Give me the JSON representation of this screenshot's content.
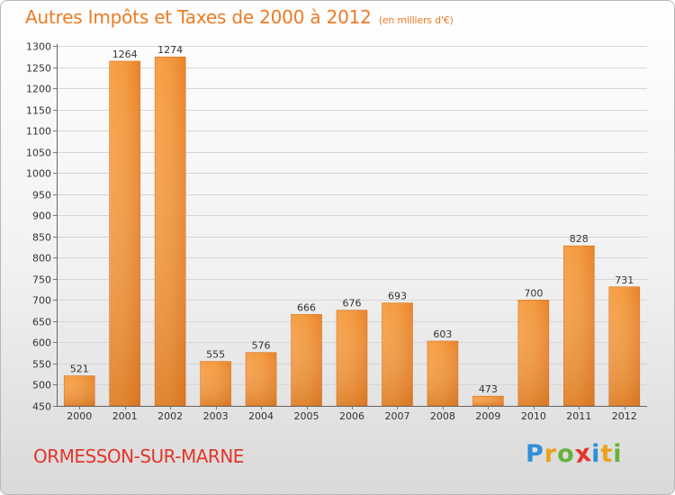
{
  "chart_data": {
    "type": "bar",
    "title": "Autres Impôts et Taxes de 2000 à 2012",
    "unit_note": "(en milliers d'€)",
    "categories": [
      "2000",
      "2001",
      "2002",
      "2003",
      "2004",
      "2005",
      "2006",
      "2007",
      "2008",
      "2009",
      "2010",
      "2011",
      "2012"
    ],
    "values": [
      521,
      1264,
      1274,
      555,
      576,
      666,
      676,
      693,
      603,
      473,
      700,
      828,
      731
    ],
    "ylim": [
      450,
      1300
    ],
    "ytick_step": 50,
    "grid": true,
    "bar_color": "#f08a2c",
    "xlabel": "",
    "ylabel": ""
  },
  "footer": {
    "city": "ORMESSON-SUR-MARNE",
    "logo": {
      "text": "Proxiti",
      "letters": [
        {
          "ch": "P",
          "color": "#2f8fd8"
        },
        {
          "ch": "r",
          "color": "#e8a21c"
        },
        {
          "ch": "o",
          "color": "#66b23a"
        },
        {
          "ch": "x",
          "color": "#e4352b"
        },
        {
          "ch": "i",
          "color": "#2f8fd8"
        },
        {
          "ch": "t",
          "color": "#e8a21c"
        },
        {
          "ch": "i",
          "color": "#66b23a"
        }
      ]
    }
  }
}
